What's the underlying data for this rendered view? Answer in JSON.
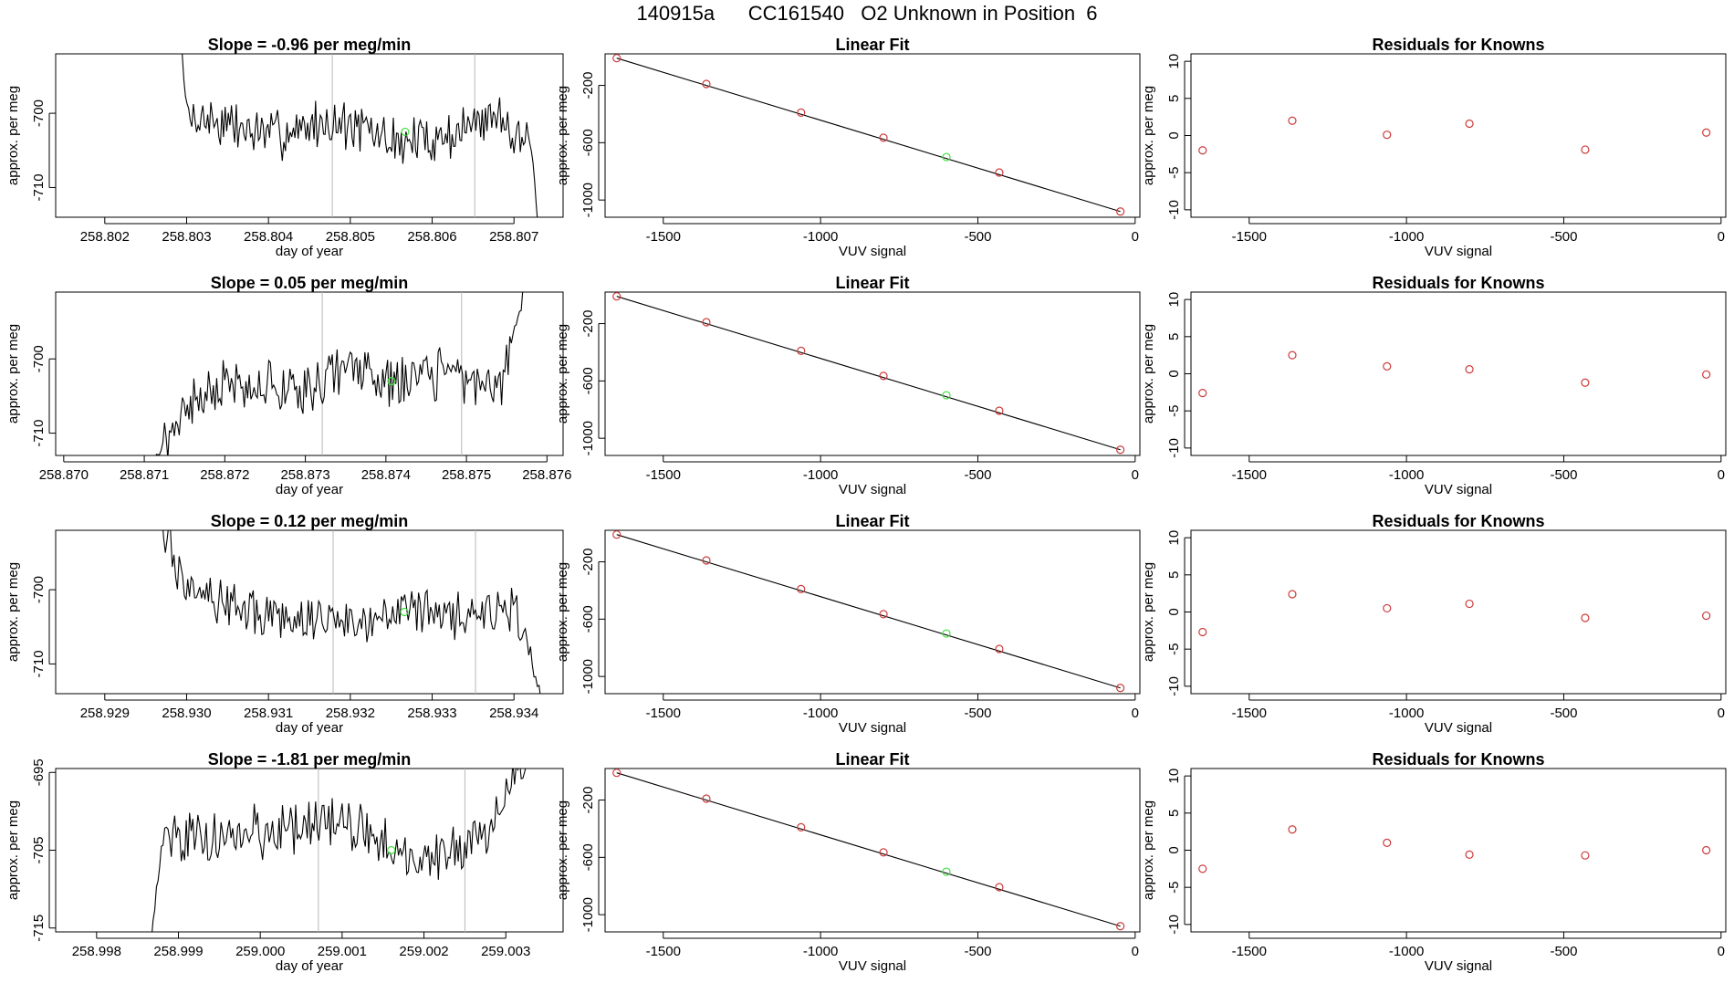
{
  "page_title": "140915a      CC161540   O2 Unknown in Position  6",
  "colors": {
    "trace": "#000000",
    "known_point": "#cd3b3b",
    "unknown_point": "#3ee23e",
    "vline": "#b8b8b8",
    "axis": "#000000"
  },
  "chart_data": [
    {
      "type": "line",
      "panel": "row1-drift",
      "title": "Slope =  -0.96  per meg/min",
      "xlabel": "day of year",
      "ylabel": "approx. per meg",
      "xlim": [
        258.8014,
        258.8076
      ],
      "ylim": [
        -714,
        -692
      ],
      "xticks": [
        "258.802",
        "258.803",
        "258.804",
        "258.805",
        "258.806",
        "258.807"
      ],
      "xtick_values": [
        258.802,
        258.803,
        258.804,
        258.805,
        258.806,
        258.807
      ],
      "yticks": [
        "-700",
        "-710"
      ],
      "ytick_values": [
        -700,
        -710
      ],
      "x_start": 258.80285,
      "x_end": 258.80731,
      "seed": 7,
      "trace_levels": [
        [
          "start",
          -680
        ],
        [
          258.803,
          -700
        ],
        [
          258.804,
          -703
        ],
        [
          258.8048,
          -701
        ],
        [
          258.8056,
          -704
        ],
        [
          258.8062,
          -703
        ],
        [
          258.8068,
          -700
        ],
        [
          258.8072,
          -704
        ],
        [
          "end",
          -716
        ]
      ],
      "vlines": [
        258.80478,
        258.80652
      ],
      "unknown_point": {
        "x": 258.80567,
        "y": -702.5
      }
    },
    {
      "type": "scatter",
      "panel": "row1-fit",
      "title": "Linear Fit",
      "xlabel": "VUV signal",
      "ylabel": "approx. per meg",
      "xlim": [
        -1685,
        15
      ],
      "ylim": [
        -1120,
        20
      ],
      "xticks": [
        "-1500",
        "-1000",
        "-500",
        "0"
      ],
      "xtick_values": [
        -1500,
        -1000,
        -500,
        0
      ],
      "yticks": [
        "-200",
        "-600",
        "-1000"
      ],
      "ytick_values": [
        -200,
        -600,
        -1000
      ],
      "fit_line": [
        [
          -1648,
          -10
        ],
        [
          -47,
          -1080
        ]
      ],
      "known_points": [
        [
          -1648,
          -10
        ],
        [
          -1363,
          -190
        ],
        [
          -1062,
          -390
        ],
        [
          -800,
          -565
        ],
        [
          -432,
          -808
        ],
        [
          -47,
          -1080
        ]
      ],
      "unknown_point": [
        -600,
        -700
      ]
    },
    {
      "type": "scatter",
      "panel": "row1-residuals",
      "title": "Residuals for Knowns",
      "xlabel": "VUV signal",
      "ylabel": "approx. per meg",
      "xlim": [
        -1685,
        15
      ],
      "ylim": [
        -11,
        11
      ],
      "xticks": [
        "-1500",
        "-1000",
        "-500",
        "0"
      ],
      "xtick_values": [
        -1500,
        -1000,
        -500,
        0
      ],
      "yticks": [
        "10",
        "5",
        "0",
        "-5",
        "-10"
      ],
      "ytick_values": [
        10,
        5,
        0,
        -5,
        -10
      ],
      "known_points": [
        [
          -1648,
          -2.0
        ],
        [
          -1363,
          2.0
        ],
        [
          -1062,
          0.1
        ],
        [
          -800,
          1.6
        ],
        [
          -432,
          -1.9
        ],
        [
          -47,
          0.4
        ]
      ]
    },
    {
      "type": "line",
      "panel": "row2-drift",
      "title": "Slope =  0.05  per meg/min",
      "xlabel": "day of year",
      "ylabel": "approx. per meg",
      "xlim": [
        258.8699,
        258.8762
      ],
      "ylim": [
        -713,
        -691
      ],
      "xticks": [
        "258.870",
        "258.871",
        "258.872",
        "258.873",
        "258.874",
        "258.875",
        "258.876"
      ],
      "xtick_values": [
        258.87,
        258.871,
        258.872,
        258.873,
        258.874,
        258.875,
        258.876
      ],
      "yticks": [
        "-700",
        "-710"
      ],
      "ytick_values": [
        -700,
        -710
      ],
      "x_start": 258.87109,
      "x_end": 258.87574,
      "seed": 21,
      "trace_levels": [
        [
          "start",
          -714
        ],
        [
          258.8715,
          -707
        ],
        [
          258.872,
          -703
        ],
        [
          258.873,
          -704
        ],
        [
          258.8735,
          -701
        ],
        [
          258.874,
          -703
        ],
        [
          258.8748,
          -702
        ],
        [
          258.8754,
          -704
        ],
        [
          "end",
          -690
        ]
      ],
      "vlines": [
        258.87321,
        258.87494
      ],
      "unknown_point": {
        "x": 258.87407,
        "y": -703
      }
    },
    {
      "type": "scatter",
      "panel": "row2-fit",
      "title": "Linear Fit",
      "xlabel": "VUV signal",
      "ylabel": "approx. per meg",
      "xlim": [
        -1685,
        15
      ],
      "ylim": [
        -1120,
        20
      ],
      "xticks": [
        "-1500",
        "-1000",
        "-500",
        "0"
      ],
      "xtick_values": [
        -1500,
        -1000,
        -500,
        0
      ],
      "yticks": [
        "-200",
        "-600",
        "-1000"
      ],
      "ytick_values": [
        -200,
        -600,
        -1000
      ],
      "fit_line": [
        [
          -1648,
          -10
        ],
        [
          -47,
          -1080
        ]
      ],
      "known_points": [
        [
          -1648,
          -10
        ],
        [
          -1363,
          -190
        ],
        [
          -1062,
          -390
        ],
        [
          -800,
          -565
        ],
        [
          -432,
          -808
        ],
        [
          -47,
          -1080
        ]
      ],
      "unknown_point": [
        -600,
        -700
      ]
    },
    {
      "type": "scatter",
      "panel": "row2-residuals",
      "title": "Residuals for Knowns",
      "xlabel": "VUV signal",
      "ylabel": "approx. per meg",
      "xlim": [
        -1685,
        15
      ],
      "ylim": [
        -11,
        11
      ],
      "xticks": [
        "-1500",
        "-1000",
        "-500",
        "0"
      ],
      "xtick_values": [
        -1500,
        -1000,
        -500,
        0
      ],
      "yticks": [
        "10",
        "5",
        "0",
        "-5",
        "-10"
      ],
      "ytick_values": [
        10,
        5,
        0,
        -5,
        -10
      ],
      "known_points": [
        [
          -1648,
          -2.6
        ],
        [
          -1363,
          2.5
        ],
        [
          -1062,
          1.0
        ],
        [
          -800,
          0.6
        ],
        [
          -432,
          -1.2
        ],
        [
          -47,
          -0.1
        ]
      ]
    },
    {
      "type": "line",
      "panel": "row3-drift",
      "title": "Slope =  0.12  per meg/min",
      "xlabel": "day of year",
      "ylabel": "approx. per meg",
      "xlim": [
        258.9284,
        258.9346
      ],
      "ylim": [
        -714,
        -692
      ],
      "xticks": [
        "258.929",
        "258.930",
        "258.931",
        "258.932",
        "258.933",
        "258.934"
      ],
      "xtick_values": [
        258.929,
        258.93,
        258.931,
        258.932,
        258.933,
        258.934
      ],
      "yticks": [
        "-700",
        "-710"
      ],
      "ytick_values": [
        -700,
        -710
      ],
      "x_start": 258.92953,
      "x_end": 258.93437,
      "seed": 33,
      "trace_levels": [
        [
          "start",
          -688
        ],
        [
          258.9299,
          -697
        ],
        [
          258.9305,
          -702
        ],
        [
          258.9312,
          -704
        ],
        [
          258.932,
          -704
        ],
        [
          258.9326,
          -702
        ],
        [
          258.9332,
          -704
        ],
        [
          258.934,
          -703
        ],
        [
          "end",
          -716
        ]
      ],
      "vlines": [
        258.93179,
        258.93353
      ],
      "unknown_point": {
        "x": 258.93266,
        "y": -703
      }
    },
    {
      "type": "scatter",
      "panel": "row3-fit",
      "title": "Linear Fit",
      "xlabel": "VUV signal",
      "ylabel": "approx. per meg",
      "xlim": [
        -1685,
        15
      ],
      "ylim": [
        -1120,
        20
      ],
      "xticks": [
        "-1500",
        "-1000",
        "-500",
        "0"
      ],
      "xtick_values": [
        -1500,
        -1000,
        -500,
        0
      ],
      "yticks": [
        "-200",
        "-600",
        "-1000"
      ],
      "ytick_values": [
        -200,
        -600,
        -1000
      ],
      "fit_line": [
        [
          -1648,
          -10
        ],
        [
          -47,
          -1080
        ]
      ],
      "known_points": [
        [
          -1648,
          -10
        ],
        [
          -1363,
          -190
        ],
        [
          -1062,
          -390
        ],
        [
          -800,
          -565
        ],
        [
          -432,
          -808
        ],
        [
          -47,
          -1080
        ]
      ],
      "unknown_point": [
        -600,
        -700
      ]
    },
    {
      "type": "scatter",
      "panel": "row3-residuals",
      "title": "Residuals for Knowns",
      "xlabel": "VUV signal",
      "ylabel": "approx. per meg",
      "xlim": [
        -1685,
        15
      ],
      "ylim": [
        -11,
        11
      ],
      "xticks": [
        "-1500",
        "-1000",
        "-500",
        "0"
      ],
      "xtick_values": [
        -1500,
        -1000,
        -500,
        0
      ],
      "yticks": [
        "10",
        "5",
        "0",
        "-5",
        "-10"
      ],
      "ytick_values": [
        10,
        5,
        0,
        -5,
        -10
      ],
      "known_points": [
        [
          -1648,
          -2.7
        ],
        [
          -1363,
          2.4
        ],
        [
          -1062,
          0.5
        ],
        [
          -800,
          1.1
        ],
        [
          -432,
          -0.8
        ],
        [
          -47,
          -0.5
        ]
      ]
    },
    {
      "type": "line",
      "panel": "row4-drift",
      "title": "Slope =  -1.81  per meg/min",
      "xlabel": "day of year",
      "ylabel": "approx. per meg",
      "xlim": [
        258.9975,
        259.0037
      ],
      "ylim": [
        -715.5,
        -694.5
      ],
      "xticks": [
        "258.998",
        "258.999",
        "259.000",
        "259.001",
        "259.002",
        "259.003"
      ],
      "xtick_values": [
        258.998,
        258.999,
        259.0,
        259.001,
        259.002,
        259.003
      ],
      "yticks": [
        "-695",
        "-705",
        "-715"
      ],
      "ytick_values": [
        -695,
        -705,
        -715
      ],
      "x_start": 258.99867,
      "x_end": 259.00333,
      "seed": 45,
      "trace_levels": [
        [
          "start",
          -716
        ],
        [
          258.9988,
          -704
        ],
        [
          258.9995,
          -703
        ],
        [
          259.0005,
          -702
        ],
        [
          259.001,
          -701
        ],
        [
          259.0016,
          -705
        ],
        [
          259.0022,
          -706
        ],
        [
          259.0028,
          -702
        ],
        [
          "end",
          -693
        ]
      ],
      "vlines": [
        259.00071,
        259.0025
      ],
      "unknown_point": {
        "x": 259.0016,
        "y": -705
      }
    },
    {
      "type": "scatter",
      "panel": "row4-fit",
      "title": "Linear Fit",
      "xlabel": "VUV signal",
      "ylabel": "approx. per meg",
      "xlim": [
        -1685,
        15
      ],
      "ylim": [
        -1120,
        20
      ],
      "xticks": [
        "-1500",
        "-1000",
        "-500",
        "0"
      ],
      "xtick_values": [
        -1500,
        -1000,
        -500,
        0
      ],
      "yticks": [
        "-200",
        "-600",
        "-1000"
      ],
      "ytick_values": [
        -200,
        -600,
        -1000
      ],
      "fit_line": [
        [
          -1648,
          -10
        ],
        [
          -47,
          -1080
        ]
      ],
      "known_points": [
        [
          -1648,
          -10
        ],
        [
          -1363,
          -190
        ],
        [
          -1062,
          -390
        ],
        [
          -800,
          -565
        ],
        [
          -432,
          -808
        ],
        [
          -47,
          -1080
        ]
      ],
      "unknown_point": [
        -600,
        -700
      ]
    },
    {
      "type": "scatter",
      "panel": "row4-residuals",
      "title": "Residuals for Knowns",
      "xlabel": "VUV signal",
      "ylabel": "approx. per meg",
      "xlim": [
        -1685,
        15
      ],
      "ylim": [
        -11,
        11
      ],
      "xticks": [
        "-1500",
        "-1000",
        "-500",
        "0"
      ],
      "xtick_values": [
        -1500,
        -1000,
        -500,
        0
      ],
      "yticks": [
        "10",
        "5",
        "0",
        "-5",
        "-10"
      ],
      "ytick_values": [
        10,
        5,
        0,
        -5,
        -10
      ],
      "known_points": [
        [
          -1648,
          -2.5
        ],
        [
          -1363,
          2.8
        ],
        [
          -1062,
          1.0
        ],
        [
          -800,
          -0.6
        ],
        [
          -432,
          -0.7
        ],
        [
          -47,
          0.0
        ]
      ]
    }
  ]
}
